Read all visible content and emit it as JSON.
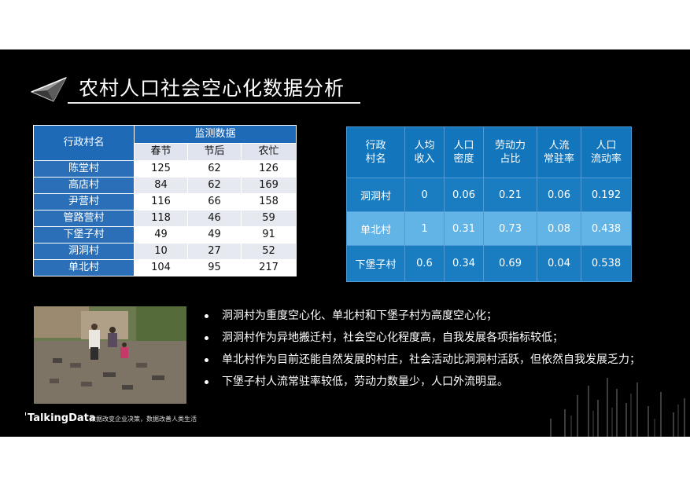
{
  "slide": {
    "title": "农村人口社会空心化数据分析"
  },
  "table_monitor": {
    "header_village": "行政村名",
    "header_group": "监测数据",
    "columns": [
      "春节",
      "节后",
      "农忙"
    ],
    "rows": [
      {
        "name": "陈堂村",
        "values": [
          "125",
          "62",
          "126"
        ]
      },
      {
        "name": "高店村",
        "values": [
          "84",
          "62",
          "169"
        ]
      },
      {
        "name": "尹营村",
        "values": [
          "116",
          "66",
          "158"
        ]
      },
      {
        "name": "管路营村",
        "values": [
          "118",
          "46",
          "59"
        ]
      },
      {
        "name": "下堡子村",
        "values": [
          "49",
          "49",
          "91"
        ]
      },
      {
        "name": "洞洞村",
        "values": [
          "10",
          "27",
          "52"
        ]
      },
      {
        "name": "单北村",
        "values": [
          "104",
          "95",
          "217"
        ]
      }
    ]
  },
  "table_indicators": {
    "headers": [
      "行政\n村名",
      "人均\n收入",
      "人口\n密度",
      "劳动力\n占比",
      "人流\n常驻率",
      "人口\n流动率"
    ],
    "rows": [
      {
        "name": "洞洞村",
        "values": [
          "0",
          "0.06",
          "0.21",
          "0.06",
          "0.192"
        ]
      },
      {
        "name": "单北村",
        "values": [
          "1",
          "0.31",
          "0.73",
          "0.08",
          "0.438"
        ]
      },
      {
        "name": "下堡子村",
        "values": [
          "0.6",
          "0.34",
          "0.69",
          "0.04",
          "0.538"
        ]
      }
    ]
  },
  "bullets": [
    "洞洞村为重度空心化、单北村和下堡子村为高度空心化；",
    "洞洞村作为异地搬迁村，社会空心化程度高，自我发展各项指标较低；",
    "单北村作为目前还能自然发展的村庄，社会活动比洞洞村活跃，但依然自我发展乏力；",
    "下堡子村人流常驻率较低，劳动力数量少，人口外流明显。"
  ],
  "footer": {
    "logo": "TalkingData",
    "tagline": "数据改变企业决策，数据改善人类生活"
  }
}
